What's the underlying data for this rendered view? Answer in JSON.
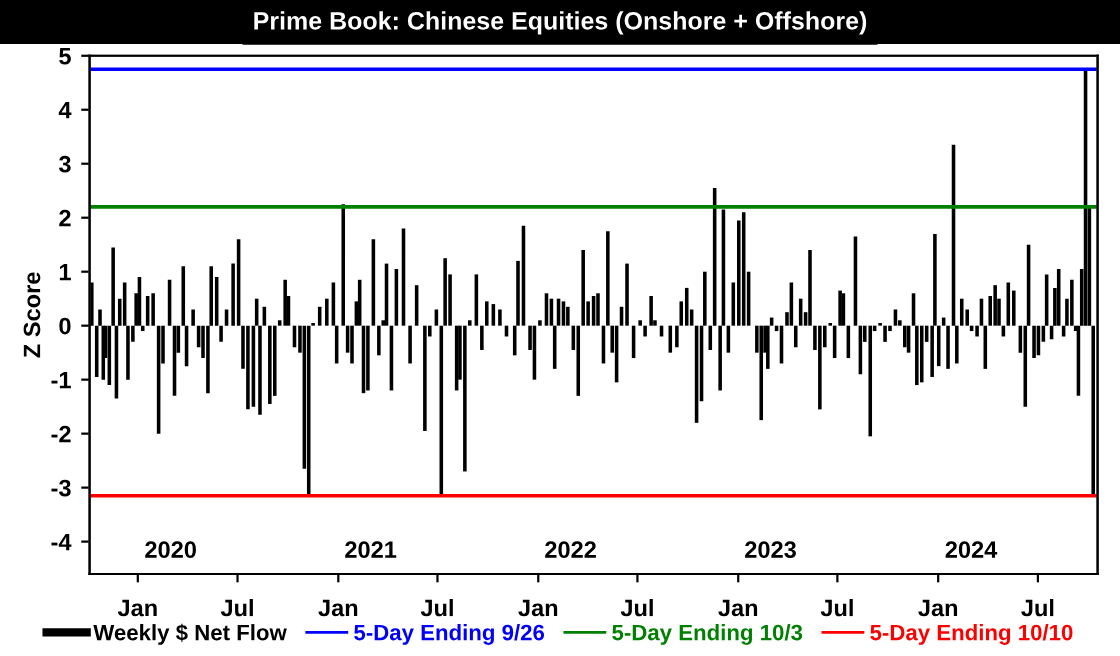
{
  "chart_data": {
    "type": "bar",
    "title": "Prime Book: Chinese Equities (Onshore + Offshore)",
    "ylabel": "Z Score",
    "series": [
      {
        "name": "Weekly $ Net Flow",
        "color": "#000000",
        "x": [
          "2019-10-09",
          "2019-10-18",
          "2019-10-24",
          "2019-10-30",
          "2019-11-03",
          "2019-11-10",
          "2019-11-17",
          "2019-11-23",
          "2019-11-29",
          "2019-12-08",
          "2019-12-14",
          "2019-12-23",
          "2019-12-29",
          "2020-01-04",
          "2020-01-10",
          "2020-01-19",
          "2020-01-29",
          "2020-02-08",
          "2020-02-16",
          "2020-02-28",
          "2020-03-08",
          "2020-03-15",
          "2020-03-24",
          "2020-03-30",
          "2020-04-11",
          "2020-04-21",
          "2020-04-29",
          "2020-05-08",
          "2020-05-14",
          "2020-05-24",
          "2020-06-01",
          "2020-06-11",
          "2020-06-23",
          "2020-07-03",
          "2020-07-11",
          "2020-07-20",
          "2020-07-30",
          "2020-08-05",
          "2020-08-11",
          "2020-08-19",
          "2020-08-29",
          "2020-09-07",
          "2020-09-16",
          "2020-09-26",
          "2020-10-02",
          "2020-10-13",
          "2020-10-23",
          "2020-10-31",
          "2020-11-08",
          "2020-11-16",
          "2020-11-28",
          "2020-12-11",
          "2020-12-23",
          "2020-12-29",
          "2021-01-10",
          "2021-01-18",
          "2021-01-26",
          "2021-02-03",
          "2021-02-09",
          "2021-02-16",
          "2021-02-24",
          "2021-03-06",
          "2021-03-16",
          "2021-03-24",
          "2021-03-30",
          "2021-04-08",
          "2021-04-17",
          "2021-04-30",
          "2021-05-12",
          "2021-05-24",
          "2021-06-08",
          "2021-06-17",
          "2021-06-29",
          "2021-07-08",
          "2021-07-15",
          "2021-07-24",
          "2021-08-05",
          "2021-08-11",
          "2021-08-20",
          "2021-08-29",
          "2021-09-10",
          "2021-09-20",
          "2021-09-29",
          "2021-10-11",
          "2021-10-23",
          "2021-11-04",
          "2021-11-19",
          "2021-11-25",
          "2021-12-05",
          "2021-12-17",
          "2021-12-25",
          "2022-01-04",
          "2022-01-16",
          "2022-01-25",
          "2022-01-31",
          "2022-02-07",
          "2022-02-16",
          "2022-02-24",
          "2022-03-06",
          "2022-03-15",
          "2022-03-24",
          "2022-04-02",
          "2022-04-12",
          "2022-04-20",
          "2022-04-30",
          "2022-05-08",
          "2022-05-16",
          "2022-05-24",
          "2022-06-02",
          "2022-06-12",
          "2022-06-24",
          "2022-07-06",
          "2022-07-15",
          "2022-07-26",
          "2022-08-02",
          "2022-08-14",
          "2022-08-30",
          "2022-09-11",
          "2022-09-19",
          "2022-09-29",
          "2022-10-08",
          "2022-10-17",
          "2022-10-26",
          "2022-11-01",
          "2022-11-11",
          "2022-11-19",
          "2022-11-29",
          "2022-12-05",
          "2022-12-14",
          "2022-12-23",
          "2023-01-02",
          "2023-01-11",
          "2023-01-20",
          "2023-02-04",
          "2023-02-12",
          "2023-02-19",
          "2023-02-24",
          "2023-03-03",
          "2023-03-12",
          "2023-03-21",
          "2023-03-31",
          "2023-04-08",
          "2023-04-16",
          "2023-04-25",
          "2023-05-04",
          "2023-05-12",
          "2023-05-21",
          "2023-05-30",
          "2023-06-08",
          "2023-06-18",
          "2023-06-26",
          "2023-07-06",
          "2023-07-12",
          "2023-07-21",
          "2023-08-03",
          "2023-08-12",
          "2023-08-20",
          "2023-08-30",
          "2023-09-07",
          "2023-09-17",
          "2023-09-26",
          "2023-10-05",
          "2023-10-15",
          "2023-10-23",
          "2023-11-01",
          "2023-11-08",
          "2023-11-17",
          "2023-11-23",
          "2023-12-02",
          "2023-12-11",
          "2023-12-21",
          "2023-12-26",
          "2024-01-02",
          "2024-01-11",
          "2024-01-19",
          "2024-01-29",
          "2024-02-04",
          "2024-02-13",
          "2024-02-23",
          "2024-03-02",
          "2024-03-12",
          "2024-03-20",
          "2024-03-27",
          "2024-04-05",
          "2024-04-14",
          "2024-04-21",
          "2024-04-29",
          "2024-05-08",
          "2024-05-18",
          "2024-05-30",
          "2024-06-08",
          "2024-06-14",
          "2024-06-24",
          "2024-07-02",
          "2024-07-11",
          "2024-07-17",
          "2024-07-26",
          "2024-08-01",
          "2024-08-08",
          "2024-08-17",
          "2024-08-23",
          "2024-09-01",
          "2024-09-08",
          "2024-09-13",
          "2024-09-19",
          "2024-09-26",
          "2024-10-03",
          "2024-10-10"
        ],
        "values": [
          0.8,
          -0.95,
          0.3,
          -1.0,
          -0.6,
          -1.1,
          1.45,
          -1.35,
          0.5,
          0.8,
          -1.0,
          -0.3,
          0.6,
          0.9,
          -0.1,
          0.55,
          0.6,
          -2.0,
          -0.7,
          0.85,
          -1.3,
          -0.5,
          1.1,
          -0.75,
          0.3,
          -0.4,
          -0.6,
          -1.25,
          1.1,
          0.9,
          -0.3,
          0.3,
          1.15,
          1.6,
          -0.8,
          -1.55,
          -1.5,
          0.5,
          -1.65,
          0.35,
          -1.45,
          -1.3,
          0.1,
          0.85,
          0.55,
          -0.4,
          -0.5,
          -2.65,
          -3.15,
          0.05,
          0.35,
          0.5,
          0.8,
          -0.7,
          2.25,
          -0.5,
          -0.7,
          0.45,
          0.85,
          -1.25,
          -1.2,
          1.6,
          -0.55,
          0.1,
          1.15,
          -1.2,
          1.05,
          1.8,
          -0.7,
          0.75,
          -1.95,
          -0.2,
          0.3,
          -3.15,
          1.25,
          0.95,
          -1.2,
          -1.0,
          -2.7,
          0.1,
          0.95,
          -0.45,
          0.45,
          0.4,
          0.3,
          -0.2,
          -0.55,
          1.2,
          1.85,
          -0.45,
          -1.0,
          0.1,
          0.6,
          0.5,
          -0.8,
          0.5,
          0.45,
          0.35,
          -0.45,
          -1.3,
          1.4,
          0.45,
          0.55,
          0.6,
          -0.7,
          1.75,
          -0.5,
          -1.05,
          0.35,
          1.15,
          -0.6,
          0.1,
          -0.2,
          0.55,
          0.1,
          -0.2,
          -0.5,
          -0.4,
          0.45,
          0.7,
          0.3,
          -1.8,
          -1.4,
          1.0,
          -0.45,
          2.55,
          -1.2,
          2.15,
          -0.5,
          0.8,
          1.95,
          2.1,
          1.0,
          -0.5,
          -1.75,
          -0.5,
          -0.8,
          0.15,
          -0.1,
          -0.7,
          0.25,
          0.8,
          -0.4,
          0.5,
          0.25,
          1.4,
          -0.45,
          -1.55,
          -0.4,
          0.05,
          -0.6,
          0.65,
          0.6,
          -0.6,
          1.65,
          -0.9,
          -0.3,
          -2.05,
          -0.1,
          0.05,
          -0.3,
          -0.1,
          0.3,
          0.1,
          -0.4,
          -0.5,
          0.6,
          -1.1,
          -1.05,
          -0.3,
          -0.95,
          1.7,
          -0.75,
          0.15,
          -0.8,
          3.35,
          -0.7,
          0.5,
          0.3,
          -0.1,
          -0.2,
          0.5,
          -0.8,
          0.55,
          0.75,
          0.5,
          -0.2,
          0.8,
          0.65,
          -0.5,
          -1.5,
          1.5,
          -0.6,
          -0.55,
          -0.3,
          0.95,
          -0.25,
          0.7,
          1.05,
          -0.2,
          0.5,
          0.85,
          -0.1,
          -1.3,
          1.05,
          4.75,
          2.2,
          -3.15
        ]
      }
    ],
    "xlim": [
      "2019-10-05",
      "2024-10-18"
    ],
    "xticks": [
      {
        "value": "2020-01-01",
        "label": "Jan"
      },
      {
        "value": "2020-07-01",
        "label": "Jul"
      },
      {
        "value": "2021-01-01",
        "label": "Jan"
      },
      {
        "value": "2021-07-01",
        "label": "Jul"
      },
      {
        "value": "2022-01-01",
        "label": "Jan"
      },
      {
        "value": "2022-07-01",
        "label": "Jul"
      },
      {
        "value": "2023-01-01",
        "label": "Jan"
      },
      {
        "value": "2023-07-01",
        "label": "Jul"
      },
      {
        "value": "2024-01-01",
        "label": "Jan"
      },
      {
        "value": "2024-07-01",
        "label": "Jul"
      }
    ],
    "x2lim": [
      "2019-10-05",
      "2024-10-18"
    ],
    "x2ticks": [
      {
        "value": "2020-03-01",
        "label": "2020"
      },
      {
        "value": "2021-03-01",
        "label": "2021"
      },
      {
        "value": "2022-03-01",
        "label": "2022"
      },
      {
        "value": "2023-03-01",
        "label": "2023"
      },
      {
        "value": "2024-03-01",
        "label": "2024"
      }
    ],
    "ylim": [
      -4.6,
      5
    ],
    "yticks": [
      -4,
      -3,
      -2,
      -1,
      0,
      1,
      2,
      3,
      4,
      5
    ],
    "ref_lines": [
      {
        "axis": "y",
        "value": 4.75,
        "label": "5-Day Ending 9/26",
        "color": "#0000ff"
      },
      {
        "axis": "y",
        "value": 2.2,
        "label": "5-Day Ending 10/3",
        "color": "#008000"
      },
      {
        "axis": "y",
        "value": -3.15,
        "label": "5-Day Ending 10/10",
        "color": "#ff0000"
      }
    ],
    "grid": false,
    "legend": "bottom"
  }
}
